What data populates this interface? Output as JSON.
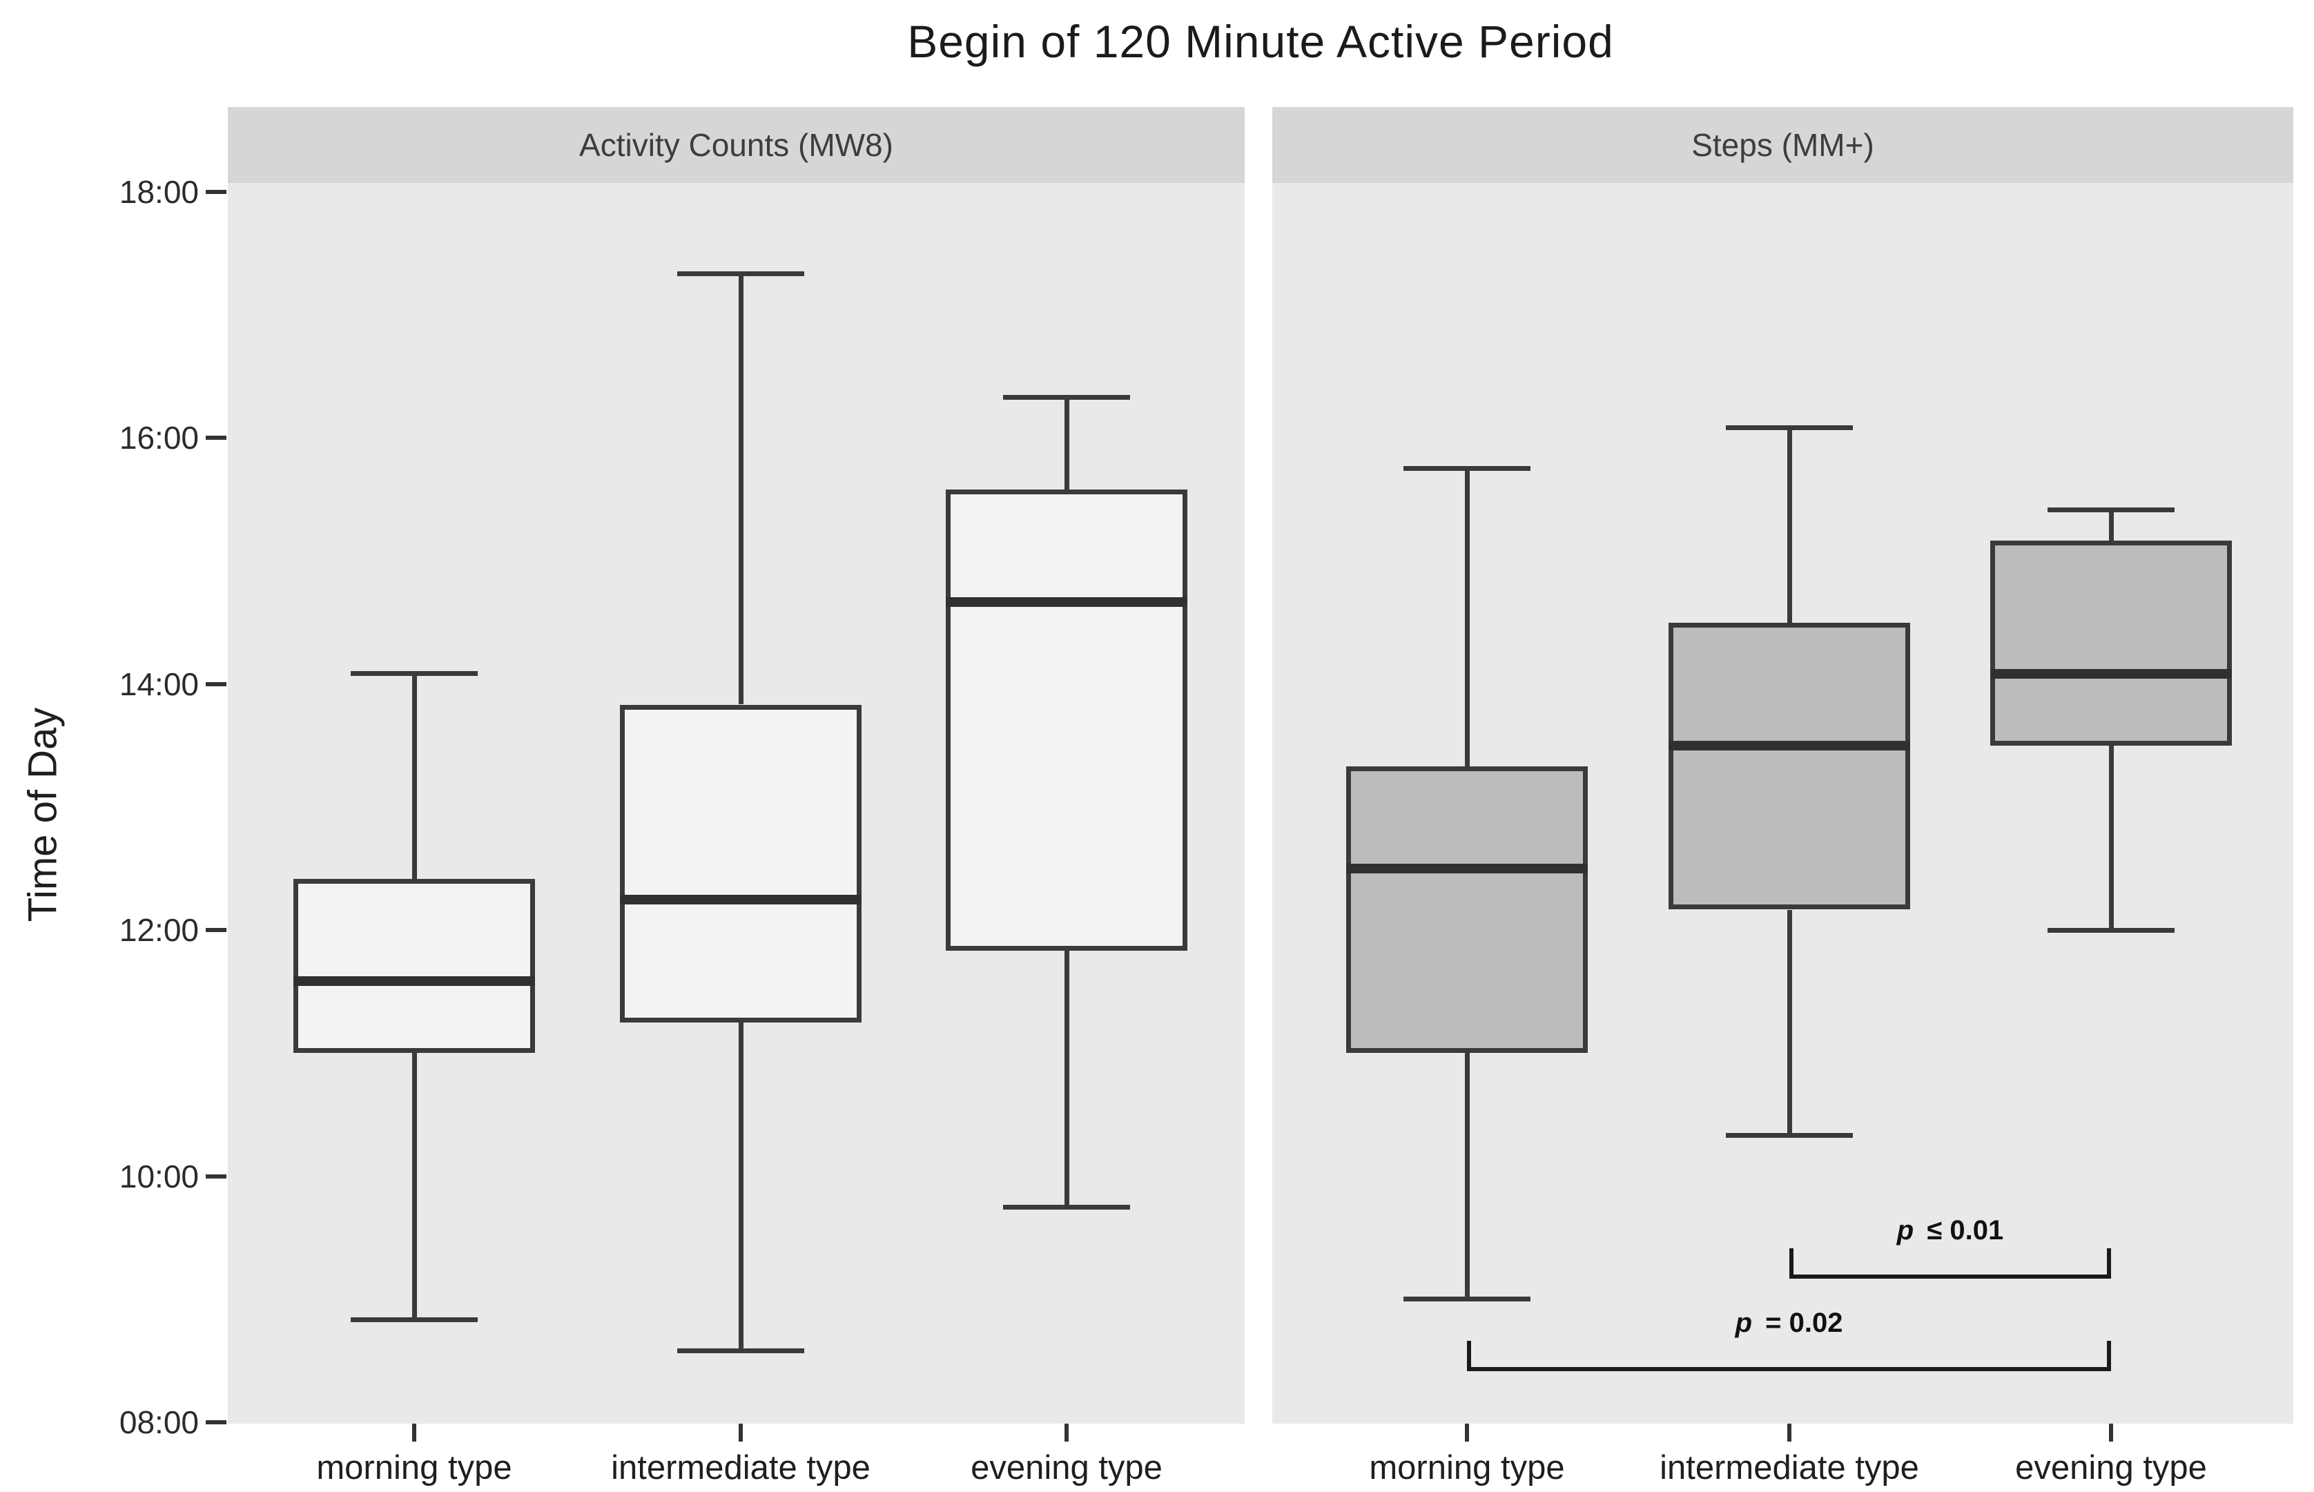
{
  "chart_data": {
    "type": "boxplot",
    "title": "Begin of 120 Minute Active Period",
    "ylabel": "Time of Day",
    "xlabel": "",
    "ylim": [
      "08:00",
      "18:00"
    ],
    "yticks": [
      "18:00",
      "16:00",
      "14:00",
      "12:00",
      "10:00",
      "08:00"
    ],
    "categories": [
      "morning type",
      "intermediate type",
      "evening type"
    ],
    "grid": "off",
    "legend": "none",
    "colors": {
      "panel_bg": "#e9e9e9",
      "strip_bg": "#d6d6d6",
      "box_border": "#3a3a3a",
      "left_facet_box_fill": "#f3f3f3",
      "right_facet_box_fill": "#bcbcbc",
      "annotation": "#1a1a1a"
    },
    "facets": [
      {
        "label": "Activity Counts (MW8)",
        "box_fill": "#f3f3f3",
        "boxes": [
          {
            "category": "morning type",
            "whisker_low": "08:50",
            "q1": "11:00",
            "median": "11:35",
            "q3": "12:25",
            "whisker_high": "14:05"
          },
          {
            "category": "intermediate type",
            "whisker_low": "08:35",
            "q1": "11:15",
            "median": "12:15",
            "q3": "13:50",
            "whisker_high": "17:20"
          },
          {
            "category": "evening type",
            "whisker_low": "09:45",
            "q1": "11:50",
            "median": "14:40",
            "q3": "15:35",
            "whisker_high": "16:20"
          }
        ]
      },
      {
        "label": "Steps (MM+)",
        "box_fill": "#bcbcbc",
        "boxes": [
          {
            "category": "morning type",
            "whisker_low": "09:00",
            "q1": "11:00",
            "median": "12:30",
            "q3": "13:20",
            "whisker_high": "15:45"
          },
          {
            "category": "intermediate type",
            "whisker_low": "10:20",
            "q1": "12:10",
            "median": "13:30",
            "q3": "14:30",
            "whisker_high": "16:05"
          },
          {
            "category": "evening type",
            "whisker_low": "12:00",
            "q1": "13:30",
            "median": "14:05",
            "q3": "15:10",
            "whisker_high": "15:25"
          }
        ]
      }
    ],
    "annotations": [
      {
        "facet_index": 1,
        "from_category": "intermediate type",
        "to_category": "evening type",
        "at_time": "09:10",
        "p_symbol": "p",
        "p_text": "≤ 0.01"
      },
      {
        "facet_index": 1,
        "from_category": "morning type",
        "to_category": "evening type",
        "at_time": "08:25",
        "p_symbol": "p",
        "p_text": "= 0.02"
      }
    ]
  }
}
